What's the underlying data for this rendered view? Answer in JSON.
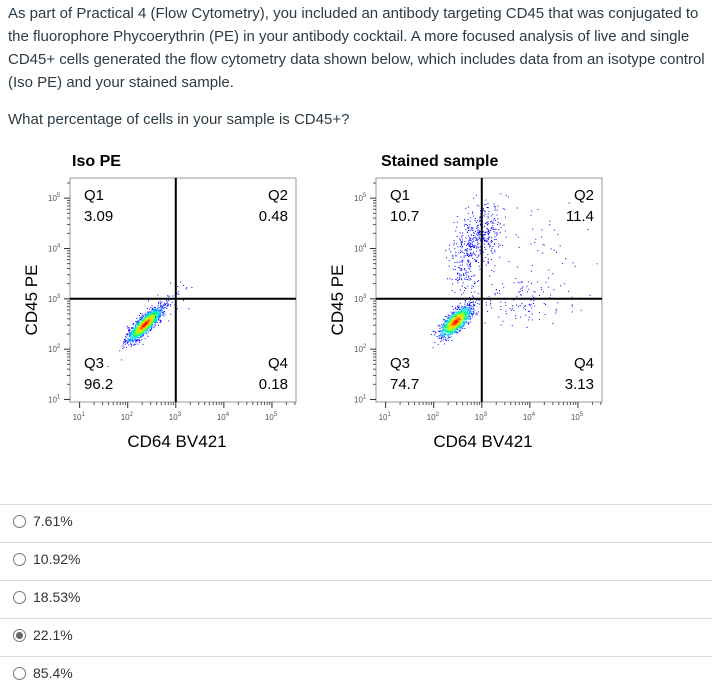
{
  "question": {
    "intro": "As part of Practical 4 (Flow Cytometry), you included an antibody targeting CD45 that was conjugated to the fluorophore Phycoerythrin (PE) in your antibody cocktail. A more focused analysis of live and single CD45+ cells generated the flow cytometry data shown below, which includes data from an isotype control (Iso PE) and your stained sample.",
    "prompt": "What percentage of cells in your sample is CD45+?"
  },
  "plots": [
    {
      "title": "Iso PE",
      "xlabel": "CD64 BV421",
      "ylabel": "CD45 PE",
      "quadrants": {
        "Q1": "3.09",
        "Q2": "0.48",
        "Q3": "96.2",
        "Q4": "0.18"
      }
    },
    {
      "title": "Stained sample",
      "xlabel": "CD64 BV421",
      "ylabel": "CD45 PE",
      "quadrants": {
        "Q1": "10.7",
        "Q2": "11.4",
        "Q3": "74.7",
        "Q4": "3.13"
      }
    }
  ],
  "axis": {
    "x_ticks": [
      "1",
      "2",
      "3",
      "4",
      "5"
    ],
    "y_ticks": [
      "1",
      "2",
      "3",
      "4",
      "5"
    ],
    "scale": "log10",
    "gate_x": 3,
    "gate_y": 3
  },
  "options": [
    {
      "label": "7.61%",
      "selected": false
    },
    {
      "label": "10.92%",
      "selected": false
    },
    {
      "label": "18.53%",
      "selected": false
    },
    {
      "label": "22.1%",
      "selected": true
    },
    {
      "label": "85.4%",
      "selected": false
    }
  ]
}
